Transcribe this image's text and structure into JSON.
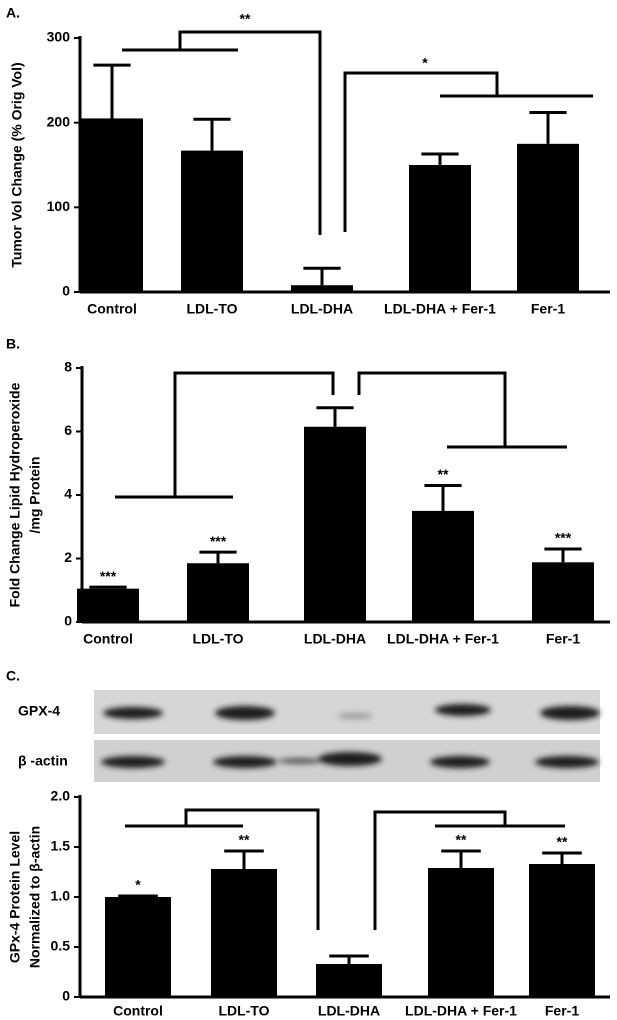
{
  "chart_data": [
    {
      "type": "bar",
      "panel_label": "A.",
      "ylabel": [
        "Tumor Vol Change (% Orig Vol)"
      ],
      "categories": [
        "Control",
        "LDL-TO",
        "LDL-DHA",
        "LDL-DHA + Fer-1",
        "Fer-1"
      ],
      "values": [
        205,
        167,
        8,
        150,
        175
      ],
      "errors": [
        63,
        37,
        20,
        13,
        37
      ],
      "color": "#000000",
      "ylim": [
        0,
        300
      ],
      "yticks": [
        0,
        100,
        200,
        300
      ],
      "annotations": [
        "**",
        "*"
      ]
    },
    {
      "type": "bar",
      "panel_label": "B.",
      "ylabel": [
        "Fold Change Lipid Hydroperoxide",
        "/mg Protein"
      ],
      "categories": [
        "Control",
        "LDL-TO",
        "LDL-DHA",
        "LDL-DHA + Fer-1",
        "Fer-1"
      ],
      "values": [
        1.05,
        1.85,
        6.15,
        3.5,
        1.88
      ],
      "errors": [
        0.05,
        0.35,
        0.6,
        0.8,
        0.42
      ],
      "color": "#000000",
      "bar_labels": [
        "***",
        "***",
        null,
        "**",
        "***"
      ],
      "ylim": [
        0,
        8
      ],
      "yticks": [
        0,
        2,
        4,
        6,
        8
      ]
    },
    {
      "type": "bar",
      "panel_label": "C.",
      "blot_labels": [
        "GPX-4",
        "β -actin"
      ],
      "ylabel": [
        "GPx-4 Protein Level",
        "Normalized to β-actin"
      ],
      "categories": [
        "Control",
        "LDL-TO",
        "LDL-DHA",
        "LDL-DHA + Fer-1",
        "Fer-1"
      ],
      "values": [
        1.0,
        1.28,
        0.33,
        1.29,
        1.33
      ],
      "errors": [
        0.01,
        0.18,
        0.08,
        0.17,
        0.11
      ],
      "color": "#000000",
      "bar_labels": [
        "*",
        "**",
        null,
        "**",
        "**"
      ],
      "ylim": [
        0,
        2
      ],
      "yticks": [
        0,
        0.5,
        {
          "value": 1,
          "label": "1.0"
        },
        1.5,
        {
          "value": 2,
          "label": "2.0"
        }
      ]
    }
  ]
}
